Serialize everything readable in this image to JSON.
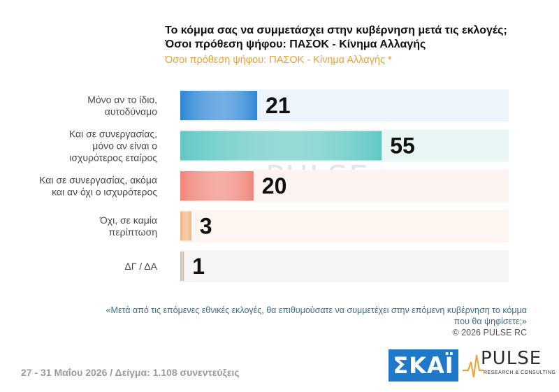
{
  "header": {
    "title_line1": "Το κόμμα σας να συμμετάσχει στην κυβέρνηση μετά τις εκλογές;",
    "title_line2": "Όσοι πρόθεση ψήφου: ΠΑΣΟΚ - Κίνημα Αλλαγής",
    "subtitle": "Όσοι πρόθεση ψήφου: ΠΑΣΟΚ - Κίνημα Αλλαγής *"
  },
  "chart_data": {
    "type": "bar",
    "orientation": "horizontal",
    "categories": [
      [
        "Μόνο αν το ίδιο,",
        "αυτοδύναμο"
      ],
      [
        "Και σε συνεργασίας,",
        "μόνο αν είναι ο",
        "ισχυρότερος εταίρος"
      ],
      [
        "Και σε συνεργασίας, ακόμα",
        "και αν όχι ο ισχυρότερος"
      ],
      [
        "Όχι, σε καμία",
        "περίπτωση"
      ],
      [
        "ΔΓ / ΔΑ"
      ]
    ],
    "values": [
      21,
      55,
      20,
      3,
      1
    ],
    "data_labels": [
      "21",
      "55",
      "20",
      "3",
      "1"
    ],
    "colors": [
      "#2e86d6",
      "#63c8c2",
      "#f0857a",
      "#f0b27c",
      "#c9b8a8"
    ],
    "track_colors": [
      "#eef4fb",
      "#eaf6f5",
      "#fdf3f1",
      "#fdf6f0",
      "#f7f5f3"
    ],
    "xlim": [
      0,
      100
    ],
    "grid": false,
    "legend": "none"
  },
  "footer": {
    "question_note": "«Μετά από τις επόμενες εθνικές εκλογές, θα επιθυμούσατε να συμμετέχει στην επόμενη κυβέρνηση το κόμμα που θα ψηφίσετε;»",
    "copyright": "©  2026  PULSE RC",
    "sample_info": "27 - 31  Μαΐου 2026  /  Δείγμα:  1.108 συνεντεύξεις",
    "skai_logo": "ΣΚΑΪ",
    "pulse_logo": "PULSE",
    "pulse_logo_sub": "RESEARCH & CONSULTING"
  }
}
